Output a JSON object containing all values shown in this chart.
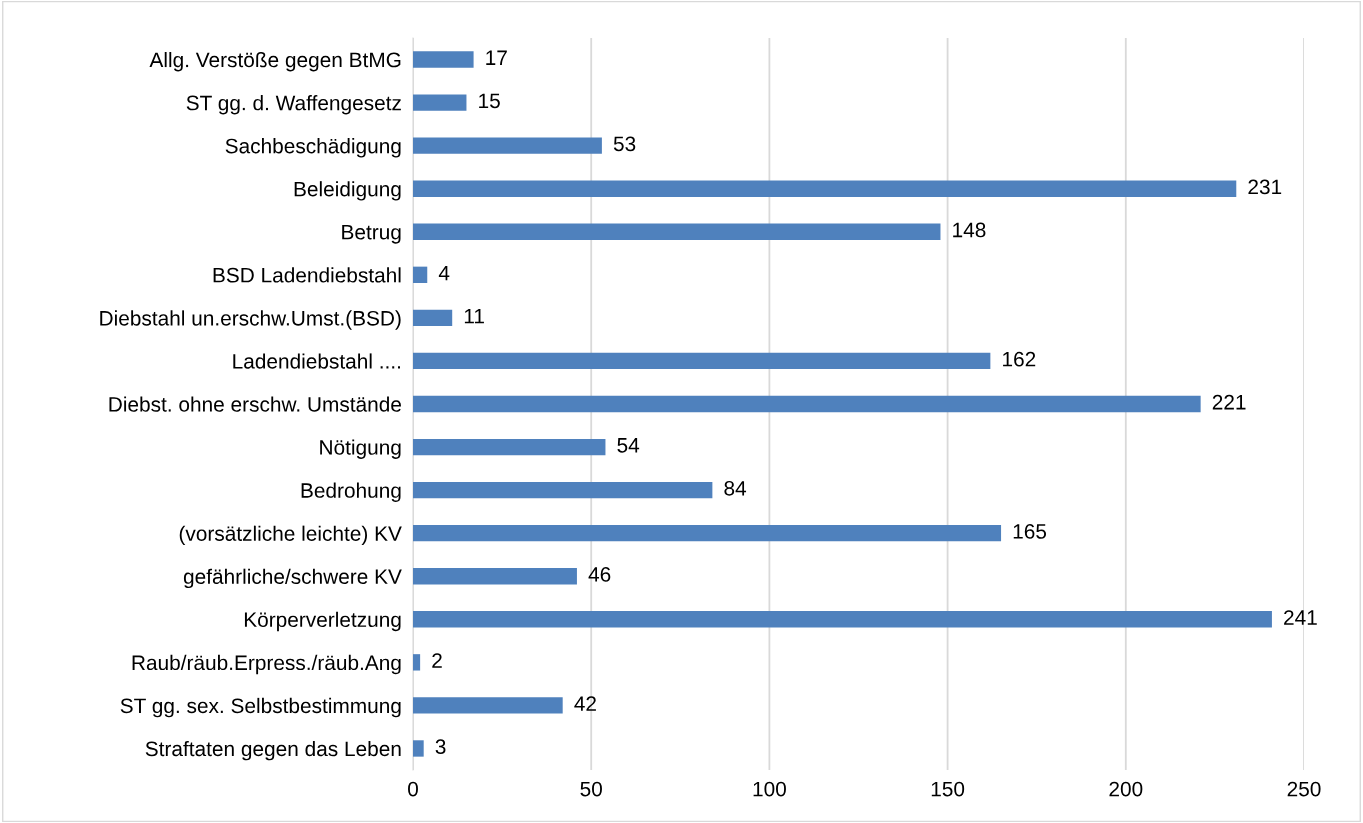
{
  "chart_data": {
    "type": "bar",
    "orientation": "horizontal",
    "categories": [
      "Allg. Verstöße gegen BtMG",
      "ST gg. d. Waffengesetz",
      "Sachbeschädigung",
      "Beleidigung",
      "Betrug",
      "BSD Ladendiebstahl",
      "Diebstahl un.erschw.Umst.(BSD)",
      "Ladendiebstahl ....",
      "Diebst. ohne erschw. Umstände",
      "Nötigung",
      "Bedrohung",
      "(vorsätzliche leichte) KV",
      "gefährliche/schwere KV",
      "Körperverletzung",
      "Raub/räub.Erpress./räub.Ang",
      "ST gg. sex. Selbstbestimmung",
      "Straftaten gegen das Leben"
    ],
    "values": [
      17,
      15,
      53,
      231,
      148,
      4,
      11,
      162,
      221,
      54,
      84,
      165,
      46,
      241,
      2,
      42,
      3
    ],
    "color": "#4f81bd",
    "xlim": [
      0,
      250
    ],
    "xticks": [
      0,
      50,
      100,
      150,
      200,
      250
    ],
    "grid": "x",
    "data_labels": true
  }
}
